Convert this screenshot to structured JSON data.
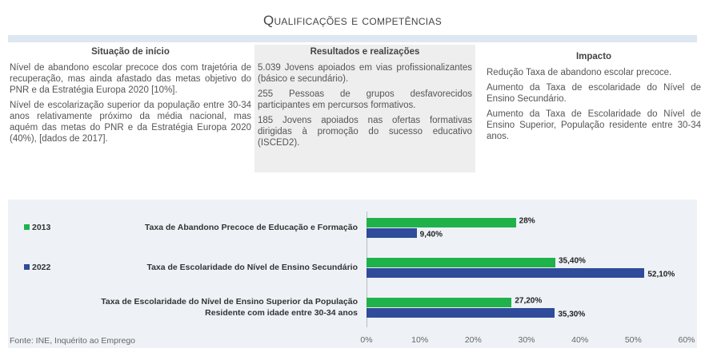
{
  "header": {
    "title": "Qualificações e competências"
  },
  "columns": [
    {
      "heading": "Situação de início",
      "paragraphs": [
        "Nível de abandono escolar precoce dos com trajetória de recuperação, mas ainda afastado das metas objetivo do PNR e da Estratégia Europa 2020 [10%].",
        "Nível de escolarização superior da população entre 30-34 anos relativamente próximo da média nacional, mas aquém das metas do PNR e da Estratégia Europa 2020 (40%), [dados de 2017]."
      ]
    },
    {
      "heading": "Resultados e realizações",
      "paragraphs": [
        "5.039 Jovens apoiados em vias profissionalizantes (básico e secundário).",
        "255 Pessoas de grupos desfavorecidos participantes em percursos formativos.",
        "185 Jovens apoiados nas ofertas formativas dirigidas à promoção do sucesso educativo (ISCED2)."
      ]
    },
    {
      "heading": "Impacto",
      "paragraphs": [
        "Redução Taxa de abandono escolar precoce.",
        "Aumento da Taxa de escolaridade do Nível de Ensino Secundário.",
        "Aumento da Taxa de Escolaridade do Nível de Ensino Superior, População residente entre 30-34 anos."
      ]
    }
  ],
  "chart_data": {
    "type": "bar",
    "orientation": "horizontal",
    "categories": [
      "Taxa de Abandono Precoce de Educação e Formação",
      "Taxa de Escolaridade do Nível de Ensino Secundário",
      "Taxa de Escolaridade do Nível de Ensino Superior da População\nResidente com idade entre 30-34 anos"
    ],
    "series": [
      {
        "name": "2013",
        "color": "#1fb24b",
        "values": [
          28,
          35.4,
          27.2
        ],
        "value_labels": [
          "28%",
          "35,40%",
          "27,20%"
        ]
      },
      {
        "name": "2022",
        "color": "#2f4b99",
        "values": [
          9.4,
          52.1,
          35.3
        ],
        "value_labels": [
          "9,40%",
          "52,10%",
          "35,30%"
        ]
      }
    ],
    "xlim": [
      0,
      60
    ],
    "xticks": [
      {
        "value": 0,
        "label": "0%"
      },
      {
        "value": 10,
        "label": "10%"
      },
      {
        "value": 20,
        "label": "20%"
      },
      {
        "value": 30,
        "label": "30%"
      },
      {
        "value": 40,
        "label": "40%"
      },
      {
        "value": 50,
        "label": "50%"
      },
      {
        "value": 60,
        "label": "60%"
      }
    ],
    "source": "Fonte: INE, Inquérito ao Emprego"
  }
}
